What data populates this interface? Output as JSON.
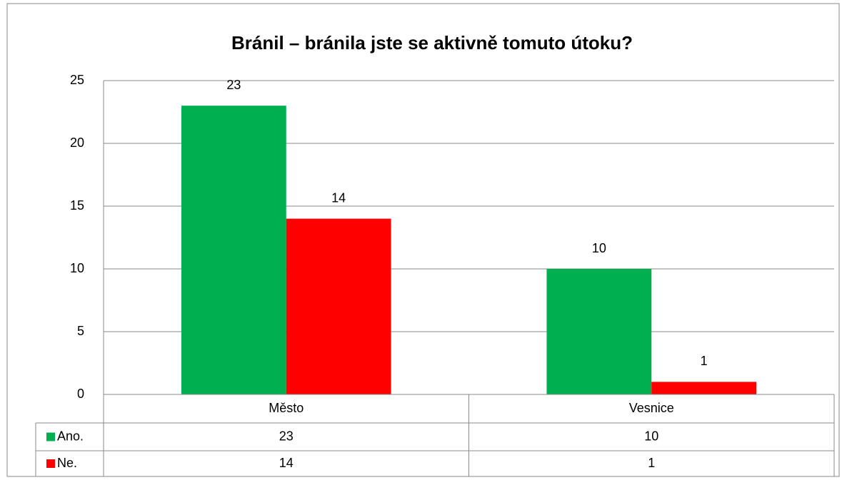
{
  "chart_data": {
    "type": "bar",
    "title": "Bránil – bránila jste se aktivně tomuto útoku?",
    "categories": [
      "Město",
      "Vesnice"
    ],
    "series": [
      {
        "name": "Ano.",
        "color": "#00b050",
        "values": [
          23,
          10
        ]
      },
      {
        "name": "Ne.",
        "color": "#ff0000",
        "values": [
          14,
          1
        ]
      }
    ],
    "ylim": [
      0,
      25
    ],
    "yticks": [
      0,
      5,
      10,
      15,
      20,
      25
    ],
    "grid": true,
    "data_table": true
  }
}
